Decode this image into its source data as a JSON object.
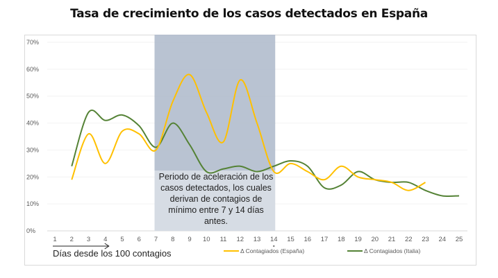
{
  "chart_data": {
    "type": "line",
    "title": "Tasa de crecimiento de los casos detectados en España",
    "xlabel": "Días desde los 100 contagios",
    "ylabel": "",
    "x": [
      1,
      2,
      3,
      4,
      5,
      6,
      7,
      8,
      9,
      10,
      11,
      12,
      13,
      14,
      15,
      16,
      17,
      18,
      19,
      20,
      21,
      22,
      23,
      24,
      25
    ],
    "y_ticks": [
      "0%",
      "10%",
      "20%",
      "30%",
      "40%",
      "50%",
      "60%",
      "70%"
    ],
    "ylim": [
      0,
      70
    ],
    "y_unit": "%",
    "grid": true,
    "legend_position": "bottom",
    "series": [
      {
        "name": "Δ Contagiados (España)",
        "color": "#FFC000",
        "x": [
          2,
          3,
          4,
          5,
          6,
          7,
          8,
          9,
          10,
          11,
          12,
          13,
          14,
          15,
          16,
          17,
          18,
          19,
          20,
          21,
          22,
          23
        ],
        "values": [
          19,
          36,
          25,
          37,
          36,
          30,
          48,
          58,
          44,
          33,
          56,
          40,
          22,
          25,
          22,
          19,
          24,
          20,
          19,
          18,
          15,
          18
        ]
      },
      {
        "name": "Δ Contagiados (Italia)",
        "color": "#548235",
        "x": [
          2,
          3,
          4,
          5,
          6,
          7,
          8,
          9,
          10,
          11,
          12,
          13,
          14,
          15,
          16,
          17,
          18,
          19,
          20,
          21,
          22,
          23,
          24,
          25
        ],
        "values": [
          24,
          44,
          41,
          43,
          39,
          31,
          40,
          32,
          22,
          23,
          24,
          22,
          24,
          26,
          24,
          16,
          17,
          22,
          19,
          18,
          18,
          15,
          13,
          13
        ]
      }
    ],
    "shaded_region": {
      "x_from": 7,
      "x_to": 14,
      "color": "#ADB9CA",
      "annotation": "Periodo de aceleración de los casos detectados, los cuales derivan de contagios de mínimo entre 7 y 14 días antes."
    },
    "x_arrow": {
      "from": 1,
      "to": 4
    }
  }
}
